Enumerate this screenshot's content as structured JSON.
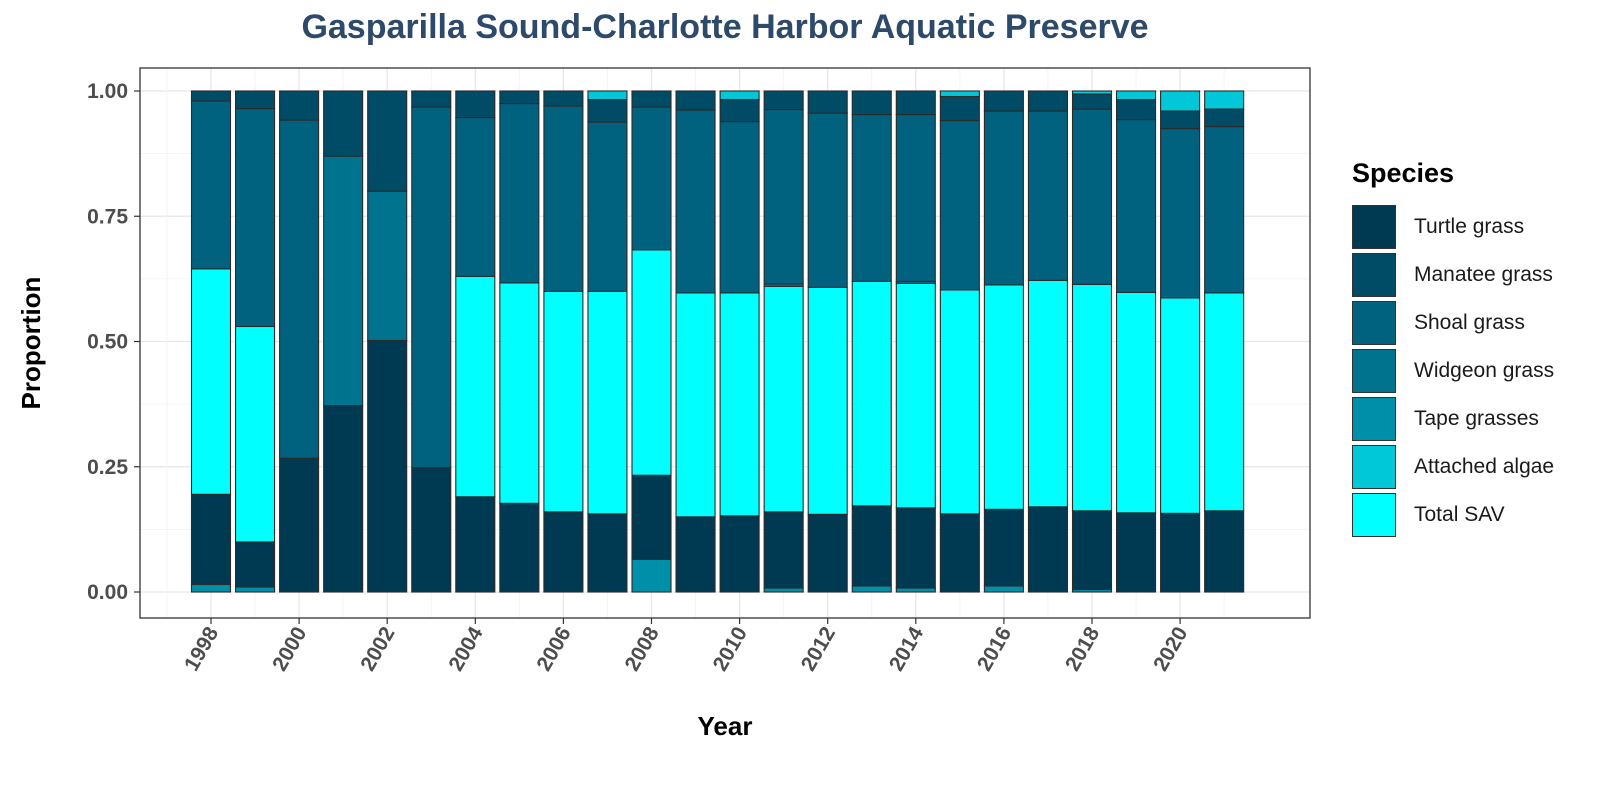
{
  "chart_data": {
    "type": "bar",
    "stacked": true,
    "title": "Gasparilla Sound-Charlotte Harbor Aquatic Preserve",
    "xlabel": "Year",
    "ylabel": "Proportion",
    "ylim": [
      0,
      1
    ],
    "y_ticks": [
      "0.00",
      "0.25",
      "0.50",
      "0.75",
      "1.00"
    ],
    "x_tick_labels": [
      "1998",
      "2000",
      "2002",
      "2004",
      "2006",
      "2008",
      "2010",
      "2012",
      "2014",
      "2016",
      "2018",
      "2020"
    ],
    "legend_title": "Species",
    "legend_position": "right",
    "grid": true,
    "categories": [
      1998,
      1999,
      2000,
      2001,
      2002,
      2003,
      2004,
      2005,
      2006,
      2007,
      2008,
      2009,
      2010,
      2011,
      2012,
      2013,
      2014,
      2015,
      2016,
      2017,
      2018,
      2019,
      2020,
      2021
    ],
    "series": [
      {
        "name": "Tape grasses",
        "color": "#008fa8",
        "values": [
          0.015,
          0.01,
          0,
          0,
          0,
          0,
          0,
          0,
          0,
          0,
          0.065,
          0,
          0,
          0.008,
          0,
          0.012,
          0.008,
          0,
          0.012,
          0,
          0.005,
          0,
          0,
          0
        ]
      },
      {
        "name": "Turtle grass",
        "color": "#003a52",
        "values": [
          0.18,
          0.09,
          0.267,
          0.372,
          0.502,
          0.248,
          0.19,
          0.177,
          0.16,
          0.156,
          0.168,
          0.15,
          0.152,
          0.152,
          0.155,
          0.16,
          0.16,
          0.156,
          0.153,
          0.17,
          0.157,
          0.158,
          0.157,
          0.162
        ]
      },
      {
        "name": "Total SAV",
        "color": "#00ffff",
        "values": [
          0.45,
          0.43,
          0,
          0,
          0,
          0,
          0.44,
          0.44,
          0.44,
          0.444,
          0.45,
          0.447,
          0.445,
          0.45,
          0.453,
          0.448,
          0.448,
          0.447,
          0.448,
          0.452,
          0.452,
          0.44,
          0.43,
          0.435
        ]
      },
      {
        "name": "Widgeon grass",
        "color": "#00738e",
        "values": [
          0,
          0,
          0,
          0.498,
          0.298,
          0,
          0,
          0,
          0,
          0,
          0,
          0,
          0,
          0.005,
          0,
          0,
          0.004,
          0,
          0,
          0,
          0,
          0,
          0,
          0
        ]
      },
      {
        "name": "Shoal grass",
        "color": "#00627e",
        "values": [
          0.335,
          0.435,
          0.675,
          0,
          0,
          0.72,
          0.317,
          0.358,
          0.37,
          0.338,
          0.285,
          0.365,
          0.342,
          0.348,
          0.348,
          0.333,
          0.333,
          0.338,
          0.347,
          0.338,
          0.35,
          0.345,
          0.338,
          0.332
        ]
      },
      {
        "name": "Manatee grass",
        "color": "#004c66",
        "values": [
          0.02,
          0.035,
          0.058,
          0.13,
          0.2,
          0.032,
          0.053,
          0.025,
          0.03,
          0.045,
          0.032,
          0.038,
          0.044,
          0.037,
          0.044,
          0.047,
          0.047,
          0.048,
          0.04,
          0.04,
          0.03,
          0.04,
          0.035,
          0.035
        ]
      },
      {
        "name": "Attached algae",
        "color": "#00c8d8",
        "values": [
          0,
          0,
          0,
          0,
          0,
          0,
          0,
          0,
          0,
          0.017,
          0,
          0,
          0.017,
          0,
          0,
          0,
          0,
          0.011,
          0,
          0,
          0.006,
          0.017,
          0.04,
          0.036
        ]
      }
    ],
    "legend_order": [
      "Turtle grass",
      "Manatee grass",
      "Shoal grass",
      "Widgeon grass",
      "Tape grasses",
      "Attached algae",
      "Total SAV"
    ]
  }
}
